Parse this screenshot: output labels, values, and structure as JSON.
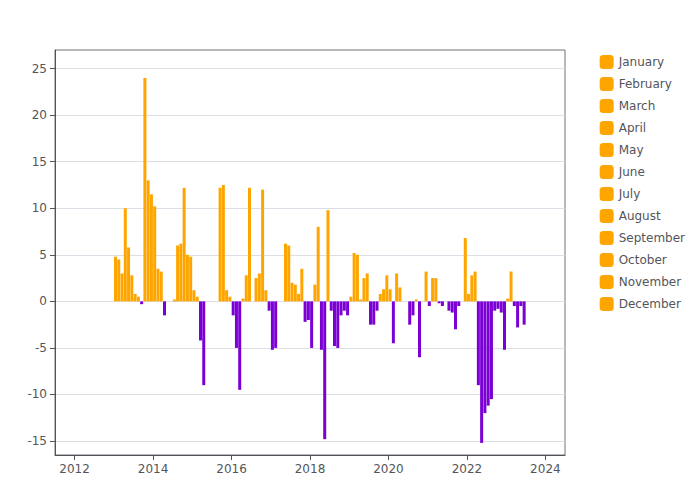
{
  "chart_data": {
    "type": "bar",
    "xlim": [
      2011.5,
      2024.5
    ],
    "xticks": [
      2012,
      2014,
      2016,
      2018,
      2020,
      2022,
      2024
    ],
    "ylim": [
      -16.5,
      27
    ],
    "yticks": [
      -15,
      -10,
      -5,
      0,
      5,
      10,
      15,
      20,
      25
    ],
    "grid": true,
    "legend": "right",
    "series": [
      {
        "name": "January",
        "color": "#FFA500",
        "x": [
          2013.541667,
          2014.541667,
          2015.541667,
          2016.541667,
          2017.541667,
          2018.541667,
          2019.541667,
          2020.541667,
          2021.541667,
          2022.541667
        ],
        "values": [
          0.8,
          0.2,
          0.0,
          0.0,
          2.0,
          -1.0,
          -2.5,
          -2.5,
          -1.0,
          -11.2
        ],
        "colors": [
          "#FFA500",
          "#FFA500",
          "#FFA500",
          "#FFA500",
          "#FFA500",
          "#7B00D4",
          "#7B00D4",
          "#7B00D4",
          "#7B00D4",
          "#7B00D4"
        ]
      },
      {
        "name": "February",
        "color": "#FFA500",
        "x": [
          2013.625,
          2014.625,
          2015.625,
          2016.625,
          2017.625,
          2018.625,
          2019.625,
          2020.625,
          2021.625,
          2022.625
        ],
        "values": [
          0.5,
          6.0,
          0.0,
          2.5,
          1.8,
          -4.8,
          -2.5,
          -1.5,
          -1.2,
          -10.5
        ],
        "colors": [
          "#FFA500",
          "#FFA500",
          "#FFA500",
          "#FFA500",
          "#FFA500",
          "#7B00D4",
          "#7B00D4",
          "#7B00D4",
          "#7B00D4",
          "#7B00D4"
        ]
      },
      {
        "name": "March",
        "color": "#FFA500",
        "x": [
          2013.708333,
          2014.708333,
          2015.708333,
          2016.708333,
          2017.708333,
          2018.708333,
          2019.708333,
          2020.708333,
          2021.708333,
          2022.708333
        ],
        "values": [
          -0.3,
          6.2,
          12.2,
          3.0,
          0.8,
          -5.0,
          -1.0,
          0.2,
          -3.0,
          -1.0
        ],
        "colors": [
          "#7B00D4",
          "#FFA500",
          "#FFA500",
          "#FFA500",
          "#FFA500",
          "#7B00D4",
          "#7B00D4",
          "#FFA500",
          "#7B00D4",
          "#7B00D4"
        ]
      },
      {
        "name": "April",
        "color": "#FFA500",
        "x": [
          2013.791667,
          2014.791667,
          2015.791667,
          2016.791667,
          2017.791667,
          2018.791667,
          2019.791667,
          2020.791667,
          2021.791667,
          2022.791667
        ],
        "values": [
          24.0,
          12.2,
          12.5,
          12.0,
          3.5,
          -1.5,
          0.8,
          -6.0,
          -0.5,
          -0.8
        ],
        "colors": [
          "#FFA500",
          "#FFA500",
          "#FFA500",
          "#FFA500",
          "#FFA500",
          "#7B00D4",
          "#FFA500",
          "#7B00D4",
          "#7B00D4",
          "#7B00D4"
        ]
      },
      {
        "name": "May",
        "color": "#FFA500",
        "x": [
          2013.875,
          2014.875,
          2015.875,
          2016.875,
          2017.875,
          2018.875,
          2019.875,
          2020.875,
          2021.875,
          2022.875
        ],
        "values": [
          13.0,
          5.0,
          1.2,
          1.2,
          -2.2,
          -1.0,
          1.3,
          0.0,
          0.0,
          -1.2
        ],
        "colors": [
          "#FFA500",
          "#FFA500",
          "#FFA500",
          "#FFA500",
          "#7B00D4",
          "#7B00D4",
          "#FFA500",
          "#FFA500",
          "#FFA500",
          "#7B00D4"
        ]
      },
      {
        "name": "June",
        "color": "#FFA500",
        "x": [
          2013.958333,
          2014.958333,
          2015.958333,
          2016.958333,
          2017.958333,
          2018.958333,
          2019.958333,
          2020.958333,
          2021.958333,
          2022.958333
        ],
        "values": [
          11.5,
          4.8,
          0.5,
          -1.0,
          -2.0,
          -1.5,
          2.8,
          3.2,
          6.8,
          -5.2
        ],
        "colors": [
          "#FFA500",
          "#FFA500",
          "#FFA500",
          "#7B00D4",
          "#7B00D4",
          "#7B00D4",
          "#FFA500",
          "#FFA500",
          "#FFA500",
          "#7B00D4"
        ]
      },
      {
        "name": "July",
        "color": "#FFA500",
        "x": [
          2013.041667,
          2014.041667,
          2015.041667,
          2016.041667,
          2017.041667,
          2018.041667,
          2019.041667,
          2020.041667,
          2021.041667,
          2022.041667,
          2023.041667
        ],
        "values": [
          4.8,
          10.2,
          1.2,
          -1.5,
          -5.2,
          -5.0,
          0.5,
          1.3,
          -0.5,
          0.8,
          0.3
        ],
        "colors": [
          "#FFA500",
          "#FFA500",
          "#FFA500",
          "#7B00D4",
          "#7B00D4",
          "#7B00D4",
          "#FFA500",
          "#FFA500",
          "#7B00D4",
          "#FFA500",
          "#FFA500"
        ]
      },
      {
        "name": "August",
        "color": "#FFA500",
        "x": [
          2013.125,
          2014.125,
          2015.125,
          2016.125,
          2017.125,
          2018.125,
          2019.125,
          2020.125,
          2021.125,
          2022.125,
          2023.125
        ],
        "values": [
          4.5,
          3.5,
          0.5,
          -5.0,
          -5.0,
          1.8,
          5.2,
          -4.5,
          2.5,
          2.8,
          3.2
        ],
        "colors": [
          "#FFA500",
          "#FFA500",
          "#FFA500",
          "#7B00D4",
          "#7B00D4",
          "#FFA500",
          "#FFA500",
          "#7B00D4",
          "#FFA500",
          "#FFA500",
          "#FFA500"
        ]
      },
      {
        "name": "September",
        "color": "#FFA500",
        "x": [
          2013.208333,
          2014.208333,
          2015.208333,
          2016.208333,
          2017.208333,
          2018.208333,
          2019.208333,
          2020.208333,
          2021.208333,
          2022.208333,
          2023.208333
        ],
        "values": [
          3.0,
          3.2,
          -4.2,
          -9.5,
          0.0,
          8.0,
          5.0,
          3.0,
          2.5,
          3.2,
          -0.5
        ],
        "colors": [
          "#FFA500",
          "#FFA500",
          "#7B00D4",
          "#7B00D4",
          "#FFA500",
          "#FFA500",
          "#FFA500",
          "#FFA500",
          "#FFA500",
          "#FFA500",
          "#7B00D4"
        ]
      },
      {
        "name": "October",
        "color": "#FFA500",
        "x": [
          2013.291667,
          2014.291667,
          2015.291667,
          2016.291667,
          2017.291667,
          2018.291667,
          2019.291667,
          2020.291667,
          2021.291667,
          2022.291667,
          2023.291667
        ],
        "values": [
          10.0,
          -1.5,
          -9.0,
          0.3,
          0.0,
          -5.2,
          0.2,
          1.5,
          -0.2,
          -9.0,
          -2.8
        ],
        "colors": [
          "#FFA500",
          "#7B00D4",
          "#7B00D4",
          "#FFA500",
          "#FFA500",
          "#7B00D4",
          "#FFA500",
          "#FFA500",
          "#7B00D4",
          "#7B00D4",
          "#7B00D4"
        ]
      },
      {
        "name": "November",
        "color": "#FFA500",
        "x": [
          2013.375,
          2015.375,
          2016.375,
          2017.375,
          2018.375,
          2019.375,
          2020.375,
          2021.375,
          2022.375,
          2023.375
        ],
        "values": [
          5.8,
          0.0,
          2.8,
          6.2,
          -14.8,
          2.5,
          0.0,
          -0.5,
          -15.2,
          -0.5
        ],
        "colors": [
          "#FFA500",
          "#FFA500",
          "#FFA500",
          "#FFA500",
          "#7B00D4",
          "#FFA500",
          "#FFA500",
          "#7B00D4",
          "#7B00D4",
          "#7B00D4"
        ]
      },
      {
        "name": "December",
        "color": "#FFA500",
        "x": [
          2013.458333,
          2016.458333,
          2017.458333,
          2018.458333,
          2019.458333,
          2022.458333,
          2023.458333
        ],
        "values": [
          2.8,
          12.2,
          6.0,
          9.8,
          3.0,
          -12.0,
          -2.5
        ],
        "colors": [
          "#FFA500",
          "#FFA500",
          "#FFA500",
          "#FFA500",
          "#FFA500",
          "#7B00D4",
          "#7B00D4"
        ]
      }
    ]
  }
}
